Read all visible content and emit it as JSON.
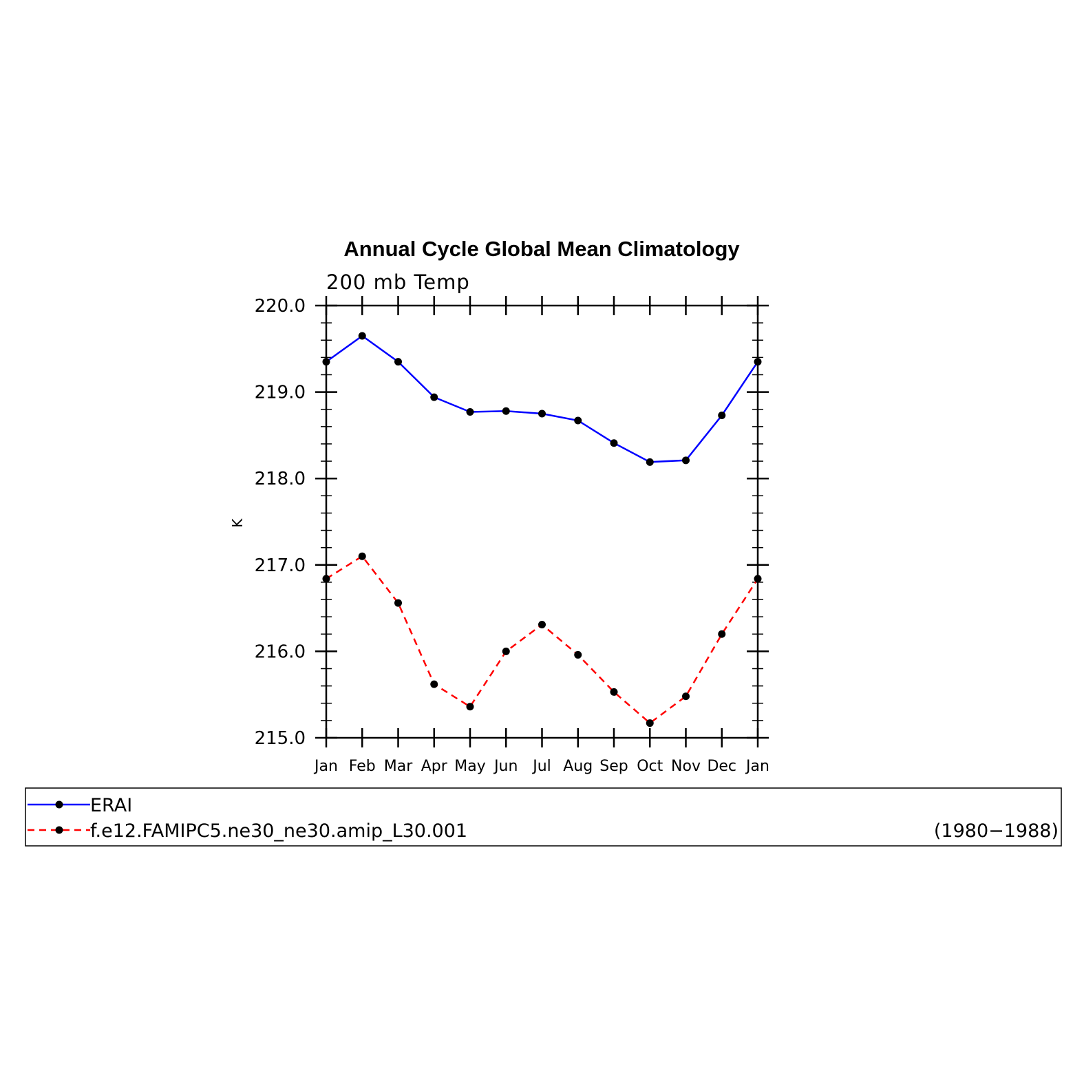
{
  "chart_data": {
    "type": "line",
    "title": "Annual Cycle Global Mean Climatology",
    "subtitle": "200 mb Temp",
    "ylabel": "K",
    "xlabel": "",
    "categories": [
      "Jan",
      "Feb",
      "Mar",
      "Apr",
      "May",
      "Jun",
      "Jul",
      "Aug",
      "Sep",
      "Oct",
      "Nov",
      "Dec",
      "Jan"
    ],
    "ylim": [
      215.0,
      220.0
    ],
    "yticks": [
      "215.0",
      "216.0",
      "217.0",
      "218.0",
      "219.0",
      "220.0"
    ],
    "grid": false,
    "series": [
      {
        "name": "ERAI",
        "color": "#0000ff",
        "dash": "solid",
        "values": [
          219.35,
          219.65,
          219.35,
          218.94,
          218.77,
          218.78,
          218.75,
          218.67,
          218.41,
          218.19,
          218.21,
          218.73,
          219.35
        ]
      },
      {
        "name": "f.e12.FAMIPC5.ne30_ne30.amip_L30.001",
        "color": "#ff0000",
        "dash": "dashed",
        "values": [
          216.84,
          217.1,
          216.56,
          215.62,
          215.36,
          216.0,
          216.31,
          215.96,
          215.53,
          215.17,
          215.48,
          216.2,
          216.84
        ]
      }
    ],
    "legend_placement": "bottom",
    "legend_note": "(1980−1988)"
  }
}
